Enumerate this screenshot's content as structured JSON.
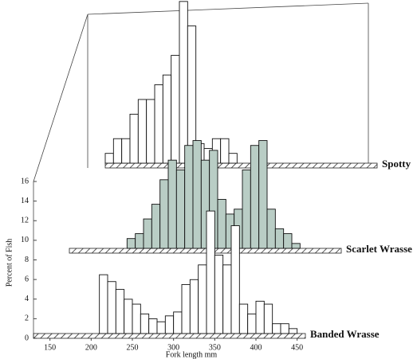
{
  "chart_data": {
    "type": "histogram",
    "xlabel": "Fork length mm",
    "ylabel": "Percent of Fish",
    "bins": [
      130,
      140,
      150,
      160,
      170,
      180,
      190,
      200,
      210,
      220,
      230,
      240,
      250,
      260,
      270,
      280,
      290,
      300,
      310,
      320,
      330,
      340,
      350,
      360,
      370,
      380,
      390,
      400,
      410,
      420,
      430,
      440,
      450,
      460
    ],
    "xlim": [
      130,
      460
    ],
    "xticks": [
      150,
      200,
      250,
      300,
      350,
      400,
      450
    ],
    "ylim": [
      0,
      16
    ],
    "yticks": [
      0,
      2,
      4,
      6,
      8,
      10,
      12,
      14,
      16
    ],
    "series": [
      {
        "name": "Banded Wrasse",
        "color": "#ffffff",
        "values": [
          0,
          0,
          0,
          0,
          0,
          0,
          0,
          0,
          6,
          5.3,
          4.5,
          3.5,
          3,
          2,
          1.5,
          1.2,
          1.8,
          2.2,
          5,
          5.5,
          7,
          12.5,
          8,
          7,
          11,
          3,
          2,
          3.3,
          3,
          1,
          1,
          0.5,
          0
        ]
      },
      {
        "name": "Scarlet Wrasse",
        "color": "#b9cdc5",
        "values": [
          0,
          0,
          0,
          0,
          0,
          0,
          0,
          1,
          1.5,
          3,
          4.5,
          7,
          9,
          8,
          10.5,
          11,
          9,
          10,
          5,
          3.5,
          4,
          8,
          10.5,
          11,
          4,
          2,
          1.5,
          0.5,
          0,
          0,
          0,
          0,
          0
        ]
      },
      {
        "name": "Spotty",
        "color": "#ffffff",
        "values": [
          1,
          2.5,
          2.5,
          5,
          6.5,
          6.5,
          8,
          9,
          11,
          16.5,
          14,
          2,
          1.5,
          2.5,
          2.5,
          1,
          0,
          0,
          0,
          0,
          0,
          0,
          0,
          0,
          0,
          0,
          0,
          0,
          0,
          0,
          0,
          0,
          0
        ]
      }
    ]
  }
}
